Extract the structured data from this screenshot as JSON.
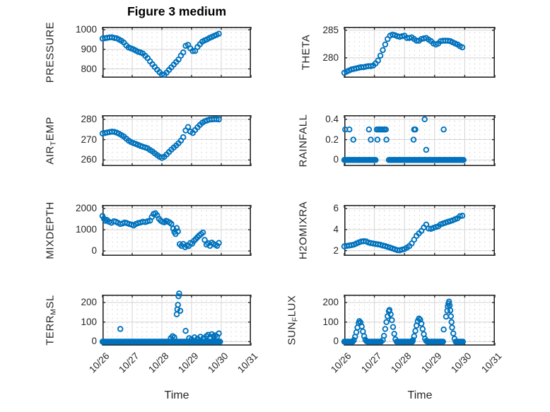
{
  "chart_data": {
    "type": "scatter",
    "title": "Figure 3 medium",
    "xlabel": "Time",
    "marker_color": "#0072BD",
    "axis_color": "#262626",
    "grid_major_color": "#d4d4d4",
    "grid_minor_color": "#c7c7c7",
    "x_axis": {
      "lim": [
        0,
        5
      ],
      "tick_positions": [
        0,
        1,
        2,
        3,
        4,
        5
      ],
      "tick_labels": [
        "10/26",
        "10/27",
        "10/28",
        "10/29",
        "10/30",
        "10/31"
      ],
      "unit": "days since 10/26"
    },
    "t_dense": [
      0,
      0.08,
      0.16,
      0.24,
      0.32,
      0.4,
      0.48,
      0.56,
      0.64,
      0.72,
      0.8,
      0.88,
      0.96,
      1.04,
      1.12,
      1.2,
      1.28,
      1.36,
      1.44,
      1.52,
      1.6,
      1.68,
      1.76,
      1.84,
      1.92,
      2,
      2.08,
      2.16,
      2.24,
      2.32,
      2.4,
      2.48,
      2.56,
      2.64,
      2.72,
      2.8,
      2.88,
      2.96,
      3.04,
      3.12,
      3.2,
      3.28,
      3.36,
      3.44,
      3.52,
      3.6,
      3.68,
      3.76,
      3.84,
      3.92
    ],
    "subplots": [
      {
        "name": "PRESSURE",
        "ylabel_parts": [
          {
            "t": "PRESSURE"
          }
        ],
        "ylim": [
          755,
          1015
        ],
        "yticks": [
          800,
          900,
          1000
        ],
        "ytick_labels": [
          "800",
          "900",
          "1000"
        ],
        "t_ref": "t_dense",
        "y": [
          955,
          957,
          959,
          961,
          962,
          958,
          956,
          950,
          943,
          935,
          920,
          910,
          905,
          900,
          894,
          888,
          884,
          879,
          867,
          855,
          839,
          824,
          810,
          796,
          783,
          772,
          770,
          781,
          795,
          808,
          822,
          835,
          848,
          868,
          884,
          918,
          923,
          905,
          891,
          892,
          912,
          926,
          939,
          946,
          951,
          958,
          963,
          969,
          974,
          980
        ]
      },
      {
        "name": "AIR_TEMP",
        "ylabel_parts": [
          {
            "t": "AIR"
          },
          {
            "t": "T",
            "sub": true
          },
          {
            "t": "EMP"
          }
        ],
        "ylim": [
          257,
          282
        ],
        "yticks": [
          260,
          270,
          280
        ],
        "ytick_labels": [
          "260",
          "270",
          "280"
        ],
        "t_ref": "t_dense",
        "y": [
          273,
          273.2,
          273.5,
          273.7,
          273.9,
          273.8,
          273.4,
          272.9,
          272.2,
          271.5,
          270.5,
          269.5,
          268.8,
          268.3,
          267.9,
          267.4,
          266.9,
          266.5,
          266.1,
          265.7,
          264.9,
          264.2,
          263.3,
          262.4,
          261.6,
          261,
          261.6,
          262.7,
          263.9,
          265.1,
          266.1,
          267.1,
          268.2,
          269.5,
          271.2,
          274.5,
          276.2,
          273.9,
          273.3,
          274.7,
          276,
          277.2,
          278.3,
          279,
          279.4,
          279.8,
          279.9,
          280,
          280,
          279.9
        ]
      },
      {
        "name": "MIXDEPTH",
        "ylabel_parts": [
          {
            "t": "MIXDEPTH"
          }
        ],
        "ylim": [
          -230,
          2170
        ],
        "yticks": [
          0,
          1000,
          2000
        ],
        "ytick_labels": [
          "0",
          "1000",
          "2000"
        ],
        "t": [
          0,
          0.05,
          0.1,
          0.15,
          0.22,
          0.3,
          0.38,
          0.45,
          0.52,
          0.6,
          0.68,
          0.75,
          0.82,
          0.9,
          0.98,
          1.05,
          1.12,
          1.2,
          1.28,
          1.36,
          1.44,
          1.52,
          1.6,
          1.66,
          1.72,
          1.78,
          1.84,
          1.9,
          1.96,
          2.02,
          2.08,
          2.14,
          2.2,
          2.26,
          2.32,
          2.38,
          2.42,
          2.46,
          2.5,
          2.54,
          2.6,
          2.66,
          2.72,
          2.78,
          2.84,
          2.9,
          2.96,
          3.02,
          3.08,
          3.14,
          3.2,
          3.26,
          3.32,
          3.38,
          3.44,
          3.5,
          3.56,
          3.62,
          3.68,
          3.74,
          3.8,
          3.86,
          3.92
        ],
        "y": [
          1650,
          1520,
          1420,
          1460,
          1380,
          1330,
          1400,
          1380,
          1330,
          1270,
          1300,
          1340,
          1310,
          1270,
          1240,
          1200,
          1270,
          1310,
          1340,
          1380,
          1360,
          1400,
          1430,
          1600,
          1740,
          1780,
          1680,
          1520,
          1430,
          1380,
          1350,
          1420,
          1390,
          1340,
          1280,
          1050,
          900,
          800,
          1080,
          920,
          320,
          240,
          330,
          180,
          260,
          230,
          380,
          340,
          480,
          560,
          650,
          730,
          800,
          870,
          520,
          300,
          360,
          240,
          390,
          330,
          290,
          240,
          380
        ]
      },
      {
        "name": "TERR_MSL",
        "ylabel_parts": [
          {
            "t": "TERR"
          },
          {
            "t": "M",
            "sub": true
          },
          {
            "t": "SL"
          }
        ],
        "ylim": [
          -20,
          240
        ],
        "yticks": [
          0,
          100,
          200
        ],
        "ytick_labels": [
          "0",
          "100",
          "200"
        ],
        "t": [
          0.6,
          2.3,
          2.36,
          2.42,
          2.5,
          2.52,
          2.54,
          2.56,
          2.58,
          2.62,
          2.8,
          2.92,
          3,
          3.1,
          3.2,
          3.3,
          3.4,
          3.5,
          3.56,
          3.62,
          3.68,
          3.74,
          3.8,
          3.86,
          3.92
        ],
        "y": [
          65,
          18,
          28,
          22,
          140,
          165,
          188,
          232,
          246,
          158,
          55,
          18,
          12,
          22,
          15,
          25,
          18,
          28,
          35,
          22,
          38,
          28,
          32,
          25,
          42
        ],
        "runs": [
          {
            "from": 0,
            "to": 3.96,
            "dt": 0.04,
            "value": 0
          }
        ]
      },
      {
        "name": "THETA",
        "ylabel_parts": [
          {
            "t": "THETA"
          }
        ],
        "ylim": [
          276.4,
          285.6
        ],
        "yticks": [
          280,
          285
        ],
        "ytick_labels": [
          "280",
          "285"
        ],
        "t_ref": "t_dense",
        "y": [
          277.3,
          277.5,
          277.7,
          277.9,
          278,
          278.1,
          278.2,
          278.3,
          278.3,
          278.4,
          278.5,
          278.5,
          278.6,
          279,
          279.5,
          280.4,
          281.4,
          282.4,
          283.4,
          284,
          284.2,
          284.1,
          283.9,
          283.8,
          283.9,
          284,
          283.6,
          283.6,
          283.7,
          283.4,
          283.1,
          283.1,
          283.4,
          283.5,
          283.6,
          283.3,
          283,
          282.6,
          282.4,
          282.6,
          283,
          283.1,
          283.1,
          283.1,
          283,
          282.8,
          282.6,
          282.4,
          282.1,
          281.9
        ]
      },
      {
        "name": "RAINFALL",
        "ylabel_parts": [
          {
            "t": "RAINFALL"
          }
        ],
        "ylim": [
          -0.06,
          0.44
        ],
        "yticks": [
          0,
          0.2,
          0.4
        ],
        "ytick_labels": [
          "0",
          "0.2",
          "0.4"
        ],
        "t": [
          0.03,
          0.17,
          0.3,
          0.82,
          0.88,
          1.08,
          1.1,
          1.13,
          1.18,
          1.23,
          1.28,
          1.33,
          1.38,
          1.4,
          2.3,
          2.32,
          2.36,
          2.67,
          2.72,
          3.3
        ],
        "y": [
          0.3,
          0.3,
          0.2,
          0.3,
          0.2,
          0.3,
          0.2,
          0.3,
          0.3,
          0.3,
          0.3,
          0.3,
          0.3,
          0.2,
          0.2,
          0.3,
          0.3,
          0.4,
          0.1,
          0.3
        ],
        "runs": [
          {
            "from": 0,
            "to": 1.04,
            "dt": 0.04,
            "value": 0
          },
          {
            "from": 1.48,
            "to": 3.96,
            "dt": 0.04,
            "value": 0
          }
        ]
      },
      {
        "name": "H2OMIXRA",
        "ylabel_parts": [
          {
            "t": "H2OMIXRA"
          }
        ],
        "ylim": [
          1.5,
          6.35
        ],
        "yticks": [
          2,
          4,
          6
        ],
        "ytick_labels": [
          "2",
          "4",
          "6"
        ],
        "t_ref": "t_dense",
        "y": [
          2.4,
          2.44,
          2.48,
          2.52,
          2.57,
          2.67,
          2.77,
          2.86,
          2.89,
          2.88,
          2.77,
          2.71,
          2.67,
          2.63,
          2.59,
          2.55,
          2.48,
          2.42,
          2.35,
          2.28,
          2.2,
          2.12,
          2.04,
          2.02,
          2.09,
          2.15,
          2.28,
          2.43,
          2.68,
          3.04,
          3.4,
          3.64,
          3.88,
          4.2,
          4.48,
          4.1,
          4.08,
          4.16,
          4.24,
          4.31,
          4.5,
          4.58,
          4.66,
          4.74,
          4.81,
          4.88,
          4.98,
          5.08,
          5.28,
          5.32
        ]
      },
      {
        "name": "SUN_FLUX",
        "ylabel_parts": [
          {
            "t": "SUN"
          },
          {
            "t": "F",
            "sub": true
          },
          {
            "t": "LUX"
          }
        ],
        "ylim": [
          -20,
          240
        ],
        "yticks": [
          0,
          100,
          200
        ],
        "ytick_labels": [
          "0",
          "100",
          "200"
        ],
        "t": [
          0.32,
          0.36,
          0.4,
          0.44,
          0.48,
          0.5,
          0.54,
          0.58,
          0.62,
          0.66,
          0.7,
          0.74,
          1.28,
          1.32,
          1.36,
          1.4,
          1.44,
          1.48,
          1.5,
          1.54,
          1.58,
          1.62,
          1.66,
          1.7,
          2.28,
          2.32,
          2.36,
          2.4,
          2.44,
          2.48,
          2.52,
          2.56,
          2.6,
          2.64,
          2.68,
          2.72,
          3.3,
          3.38,
          3.42,
          3.44,
          3.46,
          3.48,
          3.5,
          3.52,
          3.54,
          3.56,
          3.58,
          3.62,
          3.66
        ],
        "y": [
          8,
          25,
          48,
          72,
          95,
          105,
          98,
          78,
          52,
          28,
          10,
          2,
          8,
          30,
          65,
          100,
          130,
          155,
          162,
          140,
          110,
          75,
          40,
          12,
          8,
          28,
          55,
          82,
          105,
          118,
          112,
          92,
          65,
          38,
          15,
          4,
          62,
          128,
          158,
          180,
          195,
          205,
          185,
          160,
          130,
          100,
          72,
          42,
          15
        ],
        "runs": [
          {
            "from": 0,
            "to": 0.28,
            "dt": 0.04,
            "value": 0
          },
          {
            "from": 0.78,
            "to": 1.24,
            "dt": 0.04,
            "value": 0
          },
          {
            "from": 1.74,
            "to": 2.24,
            "dt": 0.04,
            "value": 0
          },
          {
            "from": 2.76,
            "to": 3.26,
            "dt": 0.04,
            "value": 0
          },
          {
            "from": 3.7,
            "to": 3.96,
            "dt": 0.04,
            "value": 0
          }
        ]
      }
    ]
  }
}
